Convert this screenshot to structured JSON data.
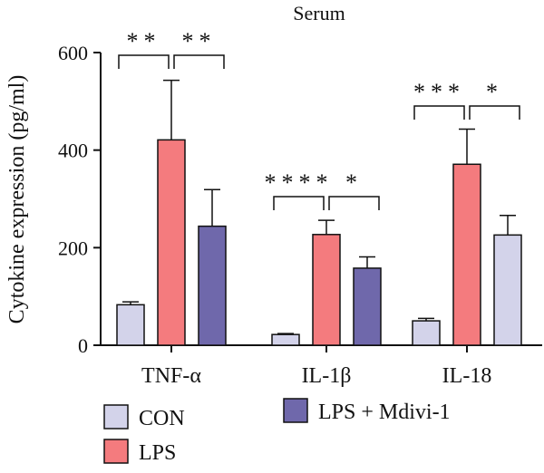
{
  "chart_data": {
    "type": "bar",
    "title": "Serum",
    "ylabel": "Cytokine expression (pg/ml)",
    "ylim": [
      0,
      600
    ],
    "yticks": [
      "0",
      "200",
      "400",
      "600"
    ],
    "categories": [
      "TNF-α",
      "IL-1β",
      "IL-18"
    ],
    "series": [
      {
        "name": "CON",
        "color": "#d3d3ea",
        "values": [
          83,
          22,
          50
        ],
        "errors": [
          6,
          2,
          5
        ]
      },
      {
        "name": "LPS",
        "color": "#f47b7e",
        "values": [
          421,
          227,
          371
        ],
        "errors": [
          122,
          29,
          72
        ]
      },
      {
        "name": "LPS + Mdivi-1",
        "color": "#6f68ab",
        "values": [
          244,
          158,
          null
        ],
        "errors": [
          75,
          23,
          null
        ]
      }
    ],
    "il18_third_bar": {
      "name": "LPS + Mdivi-1",
      "color": "#d3d3ea",
      "value": 226,
      "error": 40
    },
    "significance": [
      {
        "category": "TNF-α",
        "left": "**",
        "right": "**"
      },
      {
        "category": "IL-1β",
        "left": "****",
        "right": "*"
      },
      {
        "category": "IL-18",
        "left": "***",
        "right": "*"
      }
    ]
  }
}
